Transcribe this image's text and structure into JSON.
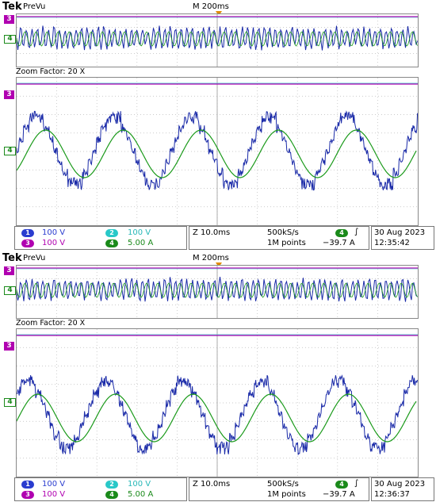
{
  "screenshots": [
    {
      "brand": "Tek",
      "mode": "PreVu",
      "timebase": "M 200ms",
      "zoom_label": "Zoom Factor: 20 X",
      "ch_markers": {
        "ch3": "3",
        "ch4": "4"
      },
      "channels": {
        "ch1": {
          "num": "1",
          "scale": "100 V"
        },
        "ch2": {
          "num": "2",
          "scale": "100 V"
        },
        "ch3": {
          "num": "3",
          "scale": "100 V"
        },
        "ch4": {
          "num": "4",
          "scale": "5.00 A"
        }
      },
      "zoom_timebase": "Z 10.0ms",
      "sample_rate": "500kS/s",
      "record_length": "1M points",
      "trigger": {
        "channel": "4",
        "symbol": "∫",
        "level": "−39.7 A"
      },
      "date": "30 Aug 2023",
      "time": "12:35:42"
    },
    {
      "brand": "Tek",
      "mode": "PreVu",
      "timebase": "M 200ms",
      "zoom_label": "Zoom Factor: 20 X",
      "ch_markers": {
        "ch3": "3",
        "ch4": "4"
      },
      "channels": {
        "ch1": {
          "num": "1",
          "scale": "100 V"
        },
        "ch2": {
          "num": "2",
          "scale": "100 V"
        },
        "ch3": {
          "num": "3",
          "scale": "100 V"
        },
        "ch4": {
          "num": "4",
          "scale": "5.00 A"
        }
      },
      "zoom_timebase": "Z 10.0ms",
      "sample_rate": "500kS/s",
      "record_length": "1M points",
      "trigger": {
        "channel": "4",
        "symbol": "∫",
        "level": "−39.7 A"
      },
      "date": "30 Aug 2023",
      "time": "12:36:37"
    }
  ],
  "colors": {
    "ch1": "#1a2aa8",
    "ch2": "#28c8c8",
    "ch3": "#b000b0",
    "ch4": "#1a9a1a",
    "trigger": "#e08a00"
  }
}
